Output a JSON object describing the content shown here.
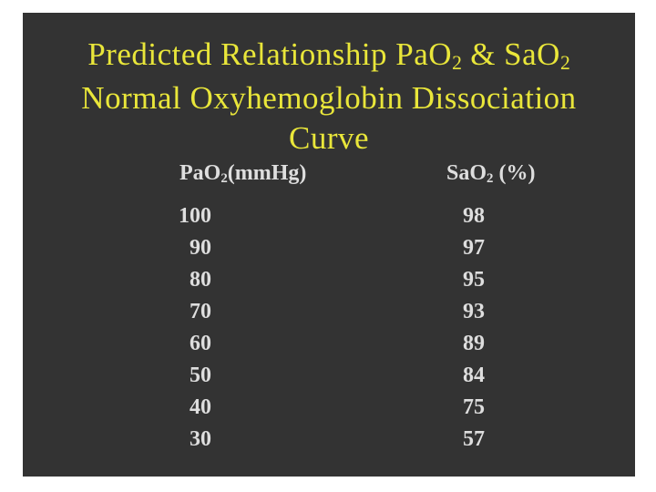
{
  "page_background": "#ffffff",
  "slide": {
    "background": "#333333",
    "title": {
      "color": "#e9e63a",
      "line1": {
        "pre": "Predicted Relationship PaO",
        "sub1": "2",
        "mid": " & SaO",
        "sub2": "2"
      },
      "line2": "Normal Oxyhemoglobin Dissociation",
      "line3": "Curve"
    },
    "table": {
      "text_color": "#dedede",
      "col1_header": {
        "pre": "PaO",
        "sub": "2",
        "post": "(mmHg)"
      },
      "col2_header": {
        "pre": "SaO",
        "sub": "2",
        "post": " (%)"
      },
      "rows": [
        {
          "pao2": "100",
          "sao2": "98"
        },
        {
          "pao2": "90",
          "sao2": "97"
        },
        {
          "pao2": "80",
          "sao2": "95"
        },
        {
          "pao2": "70",
          "sao2": "93"
        },
        {
          "pao2": "60",
          "sao2": "89"
        },
        {
          "pao2": "50",
          "sao2": "84"
        },
        {
          "pao2": "40",
          "sao2": "75"
        },
        {
          "pao2": "30",
          "sao2": "57"
        }
      ]
    }
  },
  "chart_data": {
    "type": "table",
    "title": "Predicted Relationship PaO2 & SaO2 Normal Oxyhemoglobin Dissociation Curve",
    "columns": [
      "PaO2 (mmHg)",
      "SaO2 (%)"
    ],
    "rows": [
      [
        100,
        98
      ],
      [
        90,
        97
      ],
      [
        80,
        95
      ],
      [
        70,
        93
      ],
      [
        60,
        89
      ],
      [
        50,
        84
      ],
      [
        40,
        75
      ],
      [
        30,
        57
      ]
    ]
  }
}
